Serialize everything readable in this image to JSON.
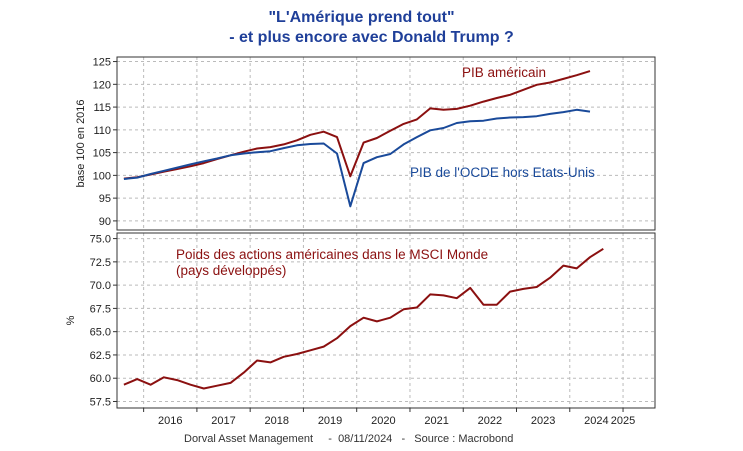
{
  "title_line1": "\"L'Amérique prend tout\"",
  "title_line2": "- et plus encore avec Donald Trump ?",
  "footer": "Dorval Asset Management     -  08/11/2024   -   Source : Macrobond",
  "colors": {
    "usa": "#8b1010",
    "oecd": "#1a4a9a",
    "grid": "#bbbbbb"
  },
  "chart_data": [
    {
      "type": "line",
      "ylabel": "base 100 en 2016",
      "ylim": [
        88,
        126
      ],
      "yticks": [
        90,
        95,
        100,
        105,
        110,
        115,
        120,
        125
      ],
      "xlim": [
        2015.5,
        2025.6
      ],
      "grid": true,
      "series": [
        {
          "name": "PIB américain",
          "color": "#8b1010",
          "x": [
            2015.63,
            2015.88,
            2016.13,
            2016.38,
            2016.63,
            2016.88,
            2017.13,
            2017.38,
            2017.63,
            2017.88,
            2018.13,
            2018.38,
            2018.63,
            2018.88,
            2019.13,
            2019.38,
            2019.63,
            2019.88,
            2020.13,
            2020.38,
            2020.63,
            2020.88,
            2021.13,
            2021.38,
            2021.63,
            2021.88,
            2022.13,
            2022.38,
            2022.63,
            2022.88,
            2023.13,
            2023.38,
            2023.63,
            2023.88,
            2024.13,
            2024.38
          ],
          "values": [
            99.3,
            99.6,
            100.2,
            100.8,
            101.4,
            102.0,
            102.7,
            103.6,
            104.4,
            105.2,
            105.9,
            106.2,
            106.8,
            107.7,
            108.9,
            109.6,
            108.4,
            99.8,
            107.2,
            108.2,
            109.8,
            111.3,
            112.3,
            114.7,
            114.4,
            114.6,
            115.3,
            116.2,
            117.0,
            117.7,
            118.8,
            119.9,
            120.4,
            121.2,
            122.0,
            122.9
          ]
        },
        {
          "name": "PIB de l'OCDE hors Etats-Unis",
          "color": "#1a4a9a",
          "x": [
            2015.63,
            2015.88,
            2016.13,
            2016.38,
            2016.63,
            2016.88,
            2017.13,
            2017.38,
            2017.63,
            2017.88,
            2018.13,
            2018.38,
            2018.63,
            2018.88,
            2019.13,
            2019.38,
            2019.63,
            2019.88,
            2020.13,
            2020.38,
            2020.63,
            2020.88,
            2021.13,
            2021.38,
            2021.63,
            2021.88,
            2022.13,
            2022.38,
            2022.63,
            2022.88,
            2023.13,
            2023.38,
            2023.63,
            2023.88,
            2024.13,
            2024.38
          ],
          "values": [
            99.2,
            99.5,
            100.3,
            101.0,
            101.7,
            102.4,
            103.1,
            103.7,
            104.4,
            104.8,
            105.1,
            105.3,
            106.0,
            106.6,
            106.9,
            107.0,
            104.8,
            93.2,
            102.7,
            104.0,
            104.7,
            106.8,
            108.4,
            109.9,
            110.4,
            111.5,
            111.9,
            112.0,
            112.5,
            112.7,
            112.8,
            113.0,
            113.5,
            113.9,
            114.4,
            114.0
          ]
        }
      ]
    },
    {
      "type": "line",
      "ylabel": "%",
      "ylim": [
        56.8,
        75.6
      ],
      "yticks": [
        57.5,
        60.0,
        62.5,
        65.0,
        67.5,
        70.0,
        72.5,
        75.0
      ],
      "xlim": [
        2015.5,
        2025.6
      ],
      "xticks": [
        "2016",
        "2017",
        "2018",
        "2019",
        "2020",
        "2021",
        "2022",
        "2023",
        "2024",
        "2025"
      ],
      "grid": true,
      "series": [
        {
          "name": "Poids des actions américaines dans le MSCI Monde (pays développés)",
          "color": "#8b1010",
          "x": [
            2015.63,
            2015.88,
            2016.13,
            2016.38,
            2016.63,
            2016.88,
            2017.13,
            2017.38,
            2017.63,
            2017.88,
            2018.13,
            2018.38,
            2018.63,
            2018.88,
            2019.13,
            2019.38,
            2019.63,
            2019.88,
            2020.13,
            2020.38,
            2020.63,
            2020.88,
            2021.13,
            2021.38,
            2021.63,
            2021.88,
            2022.13,
            2022.38,
            2022.63,
            2022.88,
            2023.13,
            2023.38,
            2023.63,
            2023.88,
            2024.13,
            2024.38,
            2024.63
          ],
          "values": [
            59.3,
            59.9,
            59.3,
            60.1,
            59.8,
            59.3,
            58.9,
            59.2,
            59.5,
            60.6,
            61.9,
            61.7,
            62.3,
            62.6,
            63.0,
            63.4,
            64.3,
            65.6,
            66.5,
            66.1,
            66.5,
            67.4,
            67.6,
            69.0,
            68.9,
            68.6,
            69.7,
            67.9,
            67.9,
            69.3,
            69.6,
            69.8,
            70.8,
            72.1,
            71.8,
            73.0,
            73.9
          ]
        }
      ]
    }
  ],
  "annotations": {
    "usa_gdp": "PIB américain",
    "oecd_gdp": "PIB de l'OCDE hors Etats-Unis",
    "msci_line1": "Poids des actions américaines dans le MSCI Monde",
    "msci_line2": "(pays développés)"
  }
}
